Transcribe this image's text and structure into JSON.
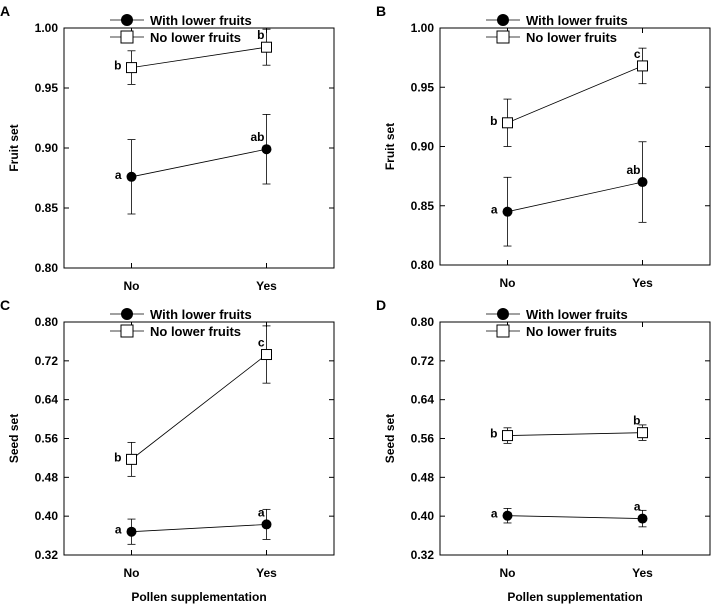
{
  "chart_data": [
    {
      "panel": "A",
      "type": "line",
      "xlabel": "",
      "ylabel": "Fruit set",
      "categories": [
        "No",
        "Yes"
      ],
      "ylim": [
        0.8,
        1.0
      ],
      "yticks": [
        "0.80",
        "0.85",
        "0.90",
        "0.95",
        "1.00"
      ],
      "legend_position": "top-left",
      "series": [
        {
          "name": "With lower fruits",
          "marker": "filled-circle",
          "values": [
            0.876,
            0.899
          ],
          "errors": [
            0.031,
            0.029
          ],
          "labels": [
            "a",
            "ab"
          ]
        },
        {
          "name": "No lower fruits",
          "marker": "open-square",
          "values": [
            0.967,
            0.984
          ],
          "errors": [
            0.014,
            0.015
          ],
          "labels": [
            "b",
            "b"
          ]
        }
      ]
    },
    {
      "panel": "B",
      "type": "line",
      "xlabel": "",
      "ylabel": "Fruit set",
      "categories": [
        "No",
        "Yes"
      ],
      "ylim": [
        0.8,
        1.0
      ],
      "yticks": [
        "0.80",
        "0.85",
        "0.90",
        "0.95",
        "1.00"
      ],
      "legend_position": "top-left",
      "series": [
        {
          "name": "With lower fruits",
          "marker": "filled-circle",
          "values": [
            0.845,
            0.87
          ],
          "errors": [
            0.029,
            0.034
          ],
          "labels": [
            "a",
            "ab"
          ]
        },
        {
          "name": "No lower fruits",
          "marker": "open-square",
          "values": [
            0.92,
            0.968
          ],
          "errors": [
            0.02,
            0.015
          ],
          "labels": [
            "b",
            "c"
          ]
        }
      ]
    },
    {
      "panel": "C",
      "type": "line",
      "xlabel": "Pollen supplementation",
      "ylabel": "Seed set",
      "categories": [
        "No",
        "Yes"
      ],
      "ylim": [
        0.32,
        0.8
      ],
      "yticks": [
        "0.32",
        "0.40",
        "0.48",
        "0.56",
        "0.64",
        "0.72",
        "0.80"
      ],
      "legend_position": "top-left",
      "series": [
        {
          "name": "With lower fruits",
          "marker": "filled-circle",
          "values": [
            0.368,
            0.383
          ],
          "errors": [
            0.026,
            0.031
          ],
          "labels": [
            "a",
            "a"
          ]
        },
        {
          "name": "No lower fruits",
          "marker": "open-square",
          "values": [
            0.517,
            0.733
          ],
          "errors": [
            0.035,
            0.059
          ],
          "labels": [
            "b",
            "c"
          ]
        }
      ]
    },
    {
      "panel": "D",
      "type": "line",
      "xlabel": "Pollen supplementation",
      "ylabel": "Seed set",
      "categories": [
        "No",
        "Yes"
      ],
      "ylim": [
        0.32,
        0.8
      ],
      "yticks": [
        "0.32",
        "0.40",
        "0.48",
        "0.56",
        "0.64",
        "0.72",
        "0.80"
      ],
      "legend_position": "top-left",
      "series": [
        {
          "name": "With lower fruits",
          "marker": "filled-circle",
          "values": [
            0.401,
            0.395
          ],
          "errors": [
            0.015,
            0.017
          ],
          "labels": [
            "a",
            "a"
          ]
        },
        {
          "name": "No lower fruits",
          "marker": "open-square",
          "values": [
            0.566,
            0.572
          ],
          "errors": [
            0.016,
            0.016
          ],
          "labels": [
            "b",
            "b"
          ]
        }
      ]
    }
  ]
}
